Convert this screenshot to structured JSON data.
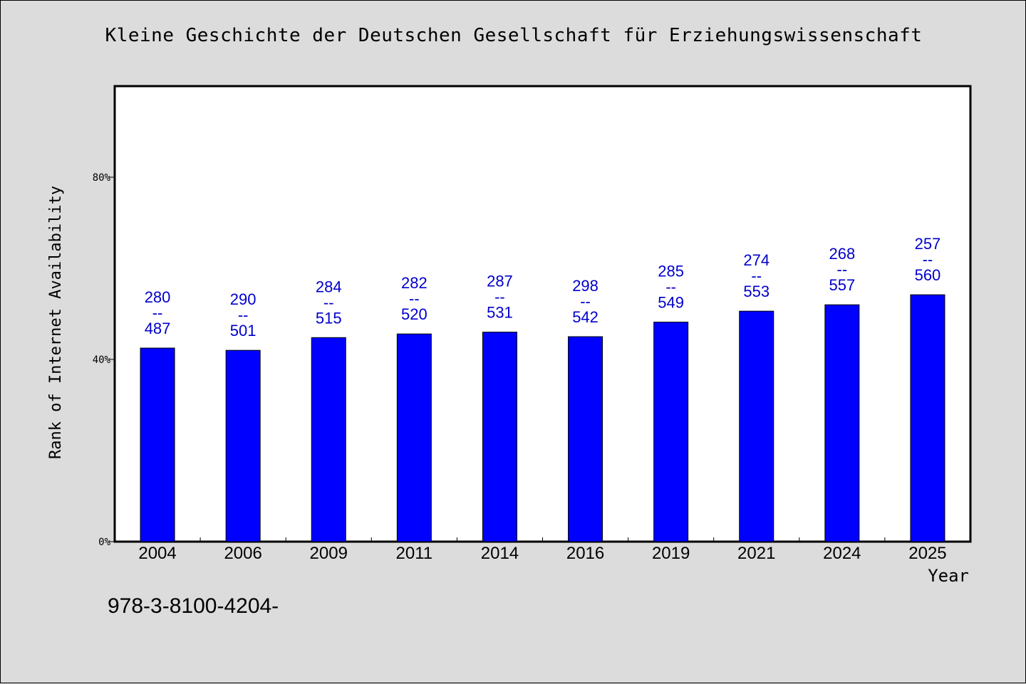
{
  "chart_data": {
    "type": "bar",
    "title": "Kleine Geschichte der Deutschen Gesellschaft für Erziehungswissenschaft",
    "xlabel": "Year",
    "ylabel": "Rank of Internet Availability",
    "categories": [
      "2004",
      "2006",
      "2009",
      "2011",
      "2014",
      "2016",
      "2019",
      "2021",
      "2024",
      "2025"
    ],
    "values": [
      42.5,
      42.0,
      44.8,
      45.6,
      46.0,
      45.0,
      48.2,
      50.6,
      52.0,
      54.2
    ],
    "value_unit": "%",
    "bar_labels": [
      [
        "280",
        "--",
        "487"
      ],
      [
        "290",
        "--",
        "501"
      ],
      [
        "284",
        "--",
        "515"
      ],
      [
        "282",
        "--",
        "520"
      ],
      [
        "287",
        "--",
        "531"
      ],
      [
        "298",
        "--",
        "542"
      ],
      [
        "285",
        "--",
        "549"
      ],
      [
        "274",
        "--",
        "553"
      ],
      [
        "268",
        "--",
        "557"
      ],
      [
        "257",
        "--",
        "560"
      ]
    ],
    "y_ticks": [
      {
        "value": 0,
        "label": "0%"
      },
      {
        "value": 40,
        "label": "40%"
      },
      {
        "value": 80,
        "label": "80%"
      }
    ],
    "ylim": [
      0,
      100
    ],
    "grid": false,
    "colors": {
      "bar": "#0000ff",
      "bar_label": "#0000cc",
      "plot_background": "#ffffff",
      "page_background": "#dcdcdc"
    }
  },
  "footer": {
    "text": "978-3-8100-4204-"
  }
}
